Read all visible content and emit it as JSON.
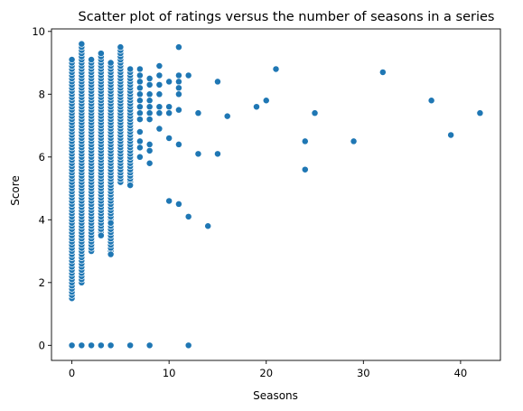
{
  "chart_data": {
    "type": "scatter",
    "title": "Scatter plot of ratings versus the number of seasons in a series",
    "xlabel": "Seasons",
    "ylabel": "Score",
    "xlim": [
      -2.1,
      44.1
    ],
    "ylim": [
      -0.48,
      10.08
    ],
    "xticks": [
      0,
      10,
      20,
      30,
      40
    ],
    "yticks": [
      0,
      2,
      4,
      6,
      8,
      10
    ],
    "grid": false,
    "legend": "none",
    "marker_color": "#1f77b4",
    "marker_edge": "#ffffff",
    "columns": [
      {
        "x": 0,
        "ymin": 1.5,
        "ymax": 9.1,
        "step": 0.1,
        "zeros": true
      },
      {
        "x": 1,
        "ymin": 2.0,
        "ymax": 9.6,
        "step": 0.1,
        "zeros": true
      },
      {
        "x": 2,
        "ymin": 3.0,
        "ymax": 9.1,
        "step": 0.1,
        "zeros": true
      },
      {
        "x": 3,
        "ymin": 3.5,
        "ymax": 9.3,
        "step": 0.1,
        "zeros": true
      },
      {
        "x": 4,
        "ymin": 2.9,
        "ymax": 9.0,
        "step": 0.1,
        "zeros": true
      },
      {
        "x": 5,
        "ymin": 5.2,
        "ymax": 9.5,
        "step": 0.1,
        "zeros": false
      },
      {
        "x": 6,
        "ymin": 5.1,
        "ymax": 8.8,
        "step": 0.1,
        "zeros": true
      }
    ],
    "points": [
      {
        "x": 3,
        "y": 3.5
      },
      {
        "x": 4,
        "y": 2.9
      },
      {
        "x": 4,
        "y": 3.9
      },
      {
        "x": 6,
        "y": 5.1
      },
      {
        "x": 7,
        "y": 8.8
      },
      {
        "x": 7,
        "y": 8.6
      },
      {
        "x": 7,
        "y": 8.4
      },
      {
        "x": 7,
        "y": 8.2
      },
      {
        "x": 7,
        "y": 8.0
      },
      {
        "x": 7,
        "y": 7.8
      },
      {
        "x": 7,
        "y": 7.6
      },
      {
        "x": 7,
        "y": 7.4
      },
      {
        "x": 7,
        "y": 7.2
      },
      {
        "x": 7,
        "y": 6.8
      },
      {
        "x": 7,
        "y": 6.5
      },
      {
        "x": 7,
        "y": 6.3
      },
      {
        "x": 7,
        "y": 6.0
      },
      {
        "x": 8,
        "y": 8.5
      },
      {
        "x": 8,
        "y": 8.3
      },
      {
        "x": 8,
        "y": 8.0
      },
      {
        "x": 8,
        "y": 7.8
      },
      {
        "x": 8,
        "y": 7.6
      },
      {
        "x": 8,
        "y": 7.4
      },
      {
        "x": 8,
        "y": 7.2
      },
      {
        "x": 8,
        "y": 6.4
      },
      {
        "x": 8,
        "y": 6.2
      },
      {
        "x": 8,
        "y": 5.8
      },
      {
        "x": 8,
        "y": 0
      },
      {
        "x": 9,
        "y": 8.9
      },
      {
        "x": 9,
        "y": 8.6
      },
      {
        "x": 9,
        "y": 8.3
      },
      {
        "x": 9,
        "y": 8.0
      },
      {
        "x": 9,
        "y": 7.6
      },
      {
        "x": 9,
        "y": 7.4
      },
      {
        "x": 9,
        "y": 6.9
      },
      {
        "x": 10,
        "y": 8.4
      },
      {
        "x": 10,
        "y": 7.6
      },
      {
        "x": 10,
        "y": 7.4
      },
      {
        "x": 10,
        "y": 6.6
      },
      {
        "x": 10,
        "y": 4.6
      },
      {
        "x": 11,
        "y": 9.5
      },
      {
        "x": 11,
        "y": 8.6
      },
      {
        "x": 11,
        "y": 8.4
      },
      {
        "x": 11,
        "y": 8.2
      },
      {
        "x": 11,
        "y": 8.0
      },
      {
        "x": 11,
        "y": 7.5
      },
      {
        "x": 11,
        "y": 6.4
      },
      {
        "x": 11,
        "y": 4.5
      },
      {
        "x": 12,
        "y": 8.6
      },
      {
        "x": 12,
        "y": 4.1
      },
      {
        "x": 12,
        "y": 0
      },
      {
        "x": 13,
        "y": 7.4
      },
      {
        "x": 13,
        "y": 6.1
      },
      {
        "x": 14,
        "y": 3.8
      },
      {
        "x": 15,
        "y": 8.4
      },
      {
        "x": 15,
        "y": 6.1
      },
      {
        "x": 16,
        "y": 7.3
      },
      {
        "x": 19,
        "y": 7.6
      },
      {
        "x": 20,
        "y": 7.8
      },
      {
        "x": 21,
        "y": 8.8
      },
      {
        "x": 24,
        "y": 6.5
      },
      {
        "x": 24,
        "y": 5.6
      },
      {
        "x": 25,
        "y": 7.4
      },
      {
        "x": 29,
        "y": 6.5
      },
      {
        "x": 32,
        "y": 8.7
      },
      {
        "x": 37,
        "y": 7.8
      },
      {
        "x": 39,
        "y": 6.7
      },
      {
        "x": 42,
        "y": 7.4
      }
    ]
  }
}
